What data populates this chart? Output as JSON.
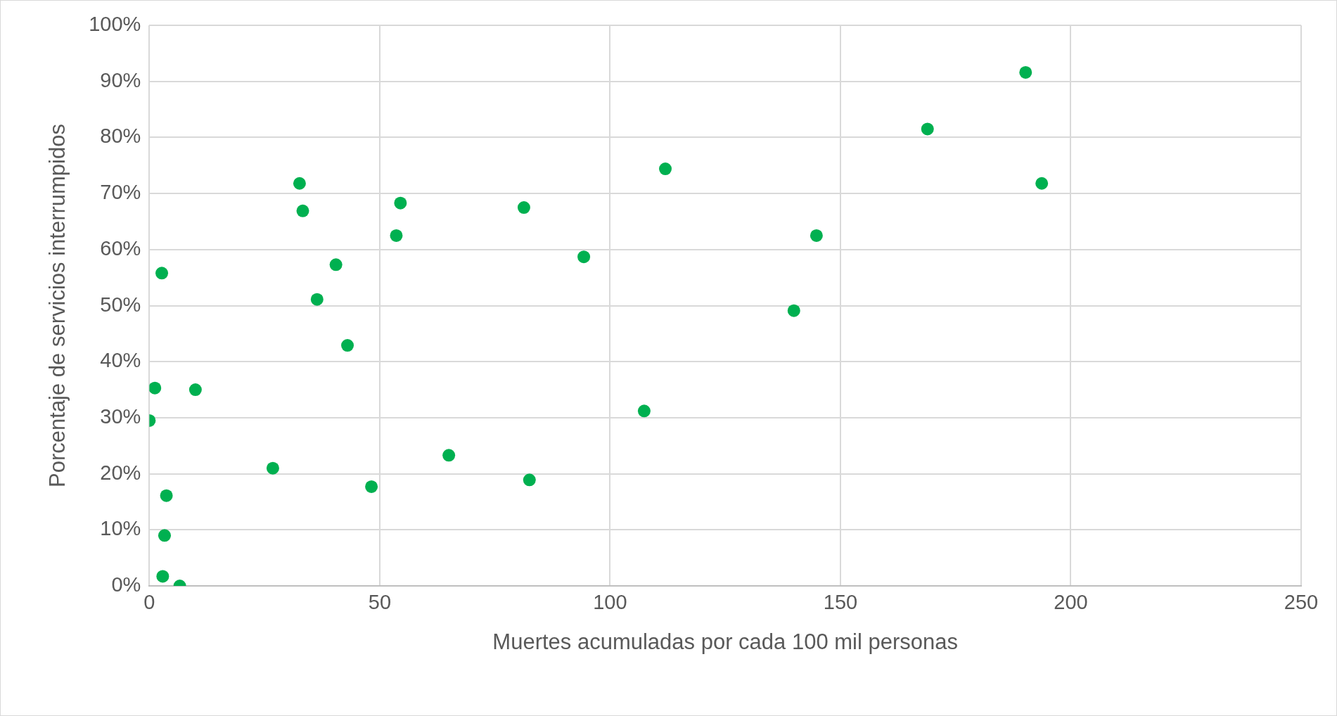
{
  "chart_data": {
    "type": "scatter",
    "xlabel": "Muertes acumuladas por cada 100 mil personas",
    "ylabel": "Porcentaje de servicios interrumpidos",
    "x": [
      190.2,
      168.9,
      193.7,
      112.0,
      144.8,
      139.9,
      107.4,
      94.3,
      81.3,
      82.5,
      65.0,
      54.5,
      53.6,
      48.2,
      43.0,
      40.5,
      36.4,
      32.6,
      33.3,
      26.8,
      10.0,
      1.2,
      0,
      2.7,
      3.7,
      3.3,
      2.9,
      6.6
    ],
    "series": [
      {
        "color": "#00b050",
        "values": [
          91.6,
          81.5,
          71.8,
          74.4,
          62.5,
          49.1,
          31.2,
          58.7,
          67.5,
          18.9,
          23.3,
          68.3,
          62.5,
          17.7,
          42.9,
          57.3,
          51.1,
          71.8,
          66.9,
          21.0,
          35.0,
          35.3,
          29.5,
          55.8,
          16.1,
          9.0,
          1.7,
          0
        ]
      }
    ],
    "xlim": [
      0,
      250
    ],
    "xticks": [
      0,
      50,
      100,
      150,
      200,
      250
    ],
    "ylim": [
      0,
      100
    ],
    "yticks": [
      {
        "value": 0,
        "label": "0%"
      },
      {
        "value": 10,
        "label": "10%"
      },
      {
        "value": 20,
        "label": "20%"
      },
      {
        "value": 30,
        "label": "30%"
      },
      {
        "value": 40,
        "label": "40%"
      },
      {
        "value": 50,
        "label": "50%"
      },
      {
        "value": 60,
        "label": "60%"
      },
      {
        "value": 70,
        "label": "70%"
      },
      {
        "value": 80,
        "label": "80%"
      },
      {
        "value": 90,
        "label": "90%"
      },
      {
        "value": 100,
        "label": "100%"
      }
    ],
    "grid": true,
    "marker": "circle",
    "legend": false
  }
}
